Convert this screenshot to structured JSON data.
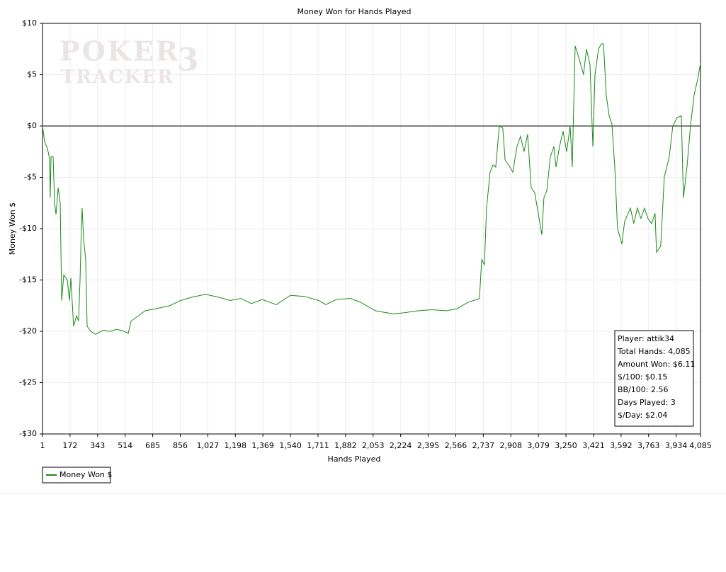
{
  "chart_data": {
    "type": "line",
    "title": "Money Won for Hands Played",
    "x_label": "Hands Played",
    "y_label": "Money Won $",
    "watermark": [
      "POKER",
      "TRACKER",
      "3"
    ],
    "x": [
      1,
      14,
      32,
      45,
      49,
      54,
      67,
      76,
      85,
      98,
      111,
      120,
      133,
      155,
      168,
      177,
      194,
      212,
      225,
      234,
      243,
      247,
      256,
      269,
      278,
      300,
      331,
      375,
      419,
      463,
      507,
      533,
      551,
      595,
      638,
      704,
      792,
      858,
      924,
      1012,
      1100,
      1166,
      1232,
      1298,
      1364,
      1452,
      1540,
      1627,
      1715,
      1759,
      1825,
      1913,
      1979,
      2067,
      2177,
      2243,
      2331,
      2419,
      2507,
      2573,
      2639,
      2713,
      2727,
      2744,
      2757,
      2779,
      2797,
      2814,
      2836,
      2858,
      2872,
      2902,
      2920,
      2946,
      2968,
      2990,
      3012,
      3034,
      3056,
      3078,
      3100,
      3113,
      3131,
      3153,
      3175,
      3188,
      3210,
      3232,
      3254,
      3276,
      3289,
      3307,
      3333,
      3359,
      3377,
      3399,
      3417,
      3430,
      3452,
      3469,
      3483,
      3500,
      3518,
      3535,
      3553,
      3570,
      3597,
      3614,
      3650,
      3671,
      3693,
      3715,
      3737,
      3759,
      3781,
      3803,
      3812,
      3838,
      3860,
      3891,
      3913,
      3939,
      3966,
      3979,
      4001,
      4023,
      4045,
      4067,
      4085
    ],
    "series": [
      {
        "name": "Money Won $",
        "color": "#1a8a1a",
        "values": [
          0,
          -1.5,
          -2.2,
          -3.2,
          -7,
          -3,
          -3,
          -7.5,
          -8.6,
          -6,
          -7.5,
          -17,
          -14.5,
          -15,
          -17,
          -14.8,
          -19.5,
          -18.5,
          -19,
          -15,
          -9.5,
          -8,
          -11,
          -13,
          -19.5,
          -20,
          -20.3,
          -19.9,
          -20,
          -19.8,
          -20,
          -20.2,
          -19,
          -18.5,
          -18,
          -17.8,
          -17.5,
          -17,
          -16.7,
          -16.4,
          -16.7,
          -17,
          -16.8,
          -17.3,
          -16.9,
          -17.4,
          -16.5,
          -16.6,
          -17,
          -17.4,
          -16.9,
          -16.8,
          -17.2,
          -18,
          -18.3,
          -18.2,
          -18,
          -17.9,
          -18,
          -17.8,
          -17.2,
          -16.8,
          -13,
          -13.5,
          -8,
          -4.5,
          -3.8,
          -4,
          0,
          -0.2,
          -3.3,
          -4,
          -4.5,
          -2,
          -1,
          -2.5,
          -0.8,
          -6,
          -6.5,
          -8.5,
          -10.6,
          -7,
          -6.3,
          -3,
          -2,
          -4,
          -2,
          -0.5,
          -2.5,
          0,
          -4,
          7.8,
          6.5,
          5,
          7.5,
          6,
          -2,
          5,
          7.5,
          8,
          8,
          3,
          1,
          0.2,
          -4,
          -10,
          -11.5,
          -9.3,
          -8,
          -9.5,
          -8,
          -9,
          -8,
          -9,
          -9.5,
          -8.5,
          -12.3,
          -11.7,
          -5,
          -3,
          0,
          0.8,
          1,
          -7,
          -4,
          0,
          3,
          4.5,
          6.11
        ]
      }
    ],
    "xlim": [
      1,
      4085
    ],
    "ylim": [
      -30,
      10
    ],
    "xticks": [
      1,
      172,
      343,
      514,
      685,
      856,
      {
        "value": 1027,
        "label": "1,027"
      },
      {
        "value": 1198,
        "label": "1,198"
      },
      {
        "value": 1369,
        "label": "1,369"
      },
      {
        "value": 1540,
        "label": "1,540"
      },
      {
        "value": 1711,
        "label": "1,711"
      },
      {
        "value": 1882,
        "label": "1,882"
      },
      {
        "value": 2053,
        "label": "2,053"
      },
      {
        "value": 2224,
        "label": "2,224"
      },
      {
        "value": 2395,
        "label": "2,395"
      },
      {
        "value": 2566,
        "label": "2,566"
      },
      {
        "value": 2737,
        "label": "2,737"
      },
      {
        "value": 2908,
        "label": "2,908"
      },
      {
        "value": 3079,
        "label": "3,079"
      },
      {
        "value": 3250,
        "label": "3,250"
      },
      {
        "value": 3421,
        "label": "3,421"
      },
      {
        "value": 3592,
        "label": "3,592"
      },
      {
        "value": 3763,
        "label": "3,763"
      },
      {
        "value": 3934,
        "label": "3,934"
      },
      {
        "value": 4085,
        "label": "4,085"
      }
    ],
    "yticks": [
      {
        "value": 10,
        "label": "$10"
      },
      {
        "value": 5,
        "label": "$5"
      },
      {
        "value": 0,
        "label": "$0"
      },
      {
        "value": -5,
        "label": "-$5"
      },
      {
        "value": -10,
        "label": "-$10"
      },
      {
        "value": -15,
        "label": "-$15"
      },
      {
        "value": -20,
        "label": "-$20"
      },
      {
        "value": -25,
        "label": "-$25"
      },
      {
        "value": -30,
        "label": "-$30"
      }
    ],
    "grid": true,
    "zero_line": true,
    "info_box": [
      "Player: attik34",
      "Total Hands: 4,085",
      "Amount Won: $6.11",
      "$/100: $0.15",
      "BB/100: 2.56",
      "Days Played: 3",
      "$/Day: $2.04"
    ]
  }
}
